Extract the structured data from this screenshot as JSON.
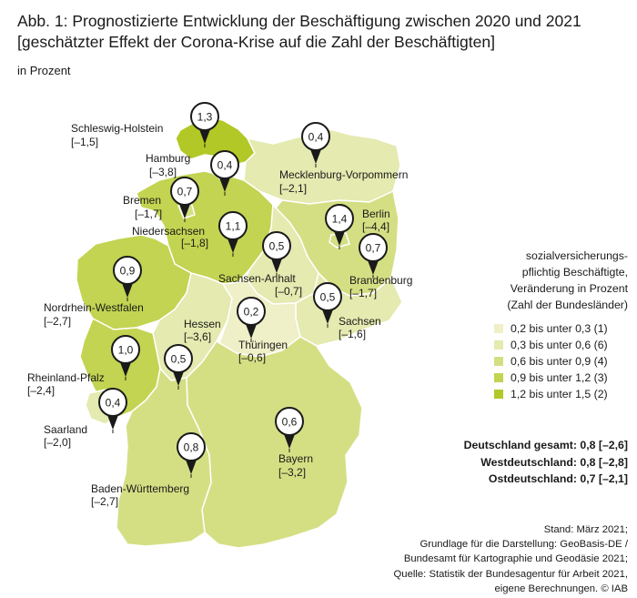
{
  "title": "Abb. 1: Prognostizierte Entwicklung der Beschäftigung zwischen 2020 und 2021 [geschätzter Effekt der Corona-Krise auf die Zahl der Beschäftigten]",
  "subtitle": "in Prozent",
  "colors": {
    "class1": "#efefc8",
    "class2": "#e4eab0",
    "class3": "#d4df84",
    "class4": "#c2d451",
    "class5": "#b2c827",
    "border": "#ffffff"
  },
  "states": [
    {
      "name": "Schleswig-Holstein",
      "value": "1,3",
      "bracket": "[–1,5]"
    },
    {
      "name": "Hamburg",
      "value": "0,4",
      "bracket": "[–3,8]"
    },
    {
      "name": "Mecklenburg-Vorpommern",
      "value": "0,4",
      "bracket": "[–2,1]"
    },
    {
      "name": "Bremen",
      "value": "0,7",
      "bracket": "[–1,7]"
    },
    {
      "name": "Niedersachsen",
      "value": "1,1",
      "bracket": "[–1,8]"
    },
    {
      "name": "Berlin",
      "value": "1,4",
      "bracket": "[–4,4]"
    },
    {
      "name": "Brandenburg",
      "value": "0,7",
      "bracket": "[–1,7]"
    },
    {
      "name": "Sachsen-Anhalt",
      "value": "0,5",
      "bracket": "[–0,7]"
    },
    {
      "name": "Nordrhein-Westfalen",
      "value": "0,9",
      "bracket": "[–2,7]"
    },
    {
      "name": "Sachsen",
      "value": "0,5",
      "bracket": "[–1,6]"
    },
    {
      "name": "Hessen",
      "value": "0,5",
      "bracket": "[–3,6]"
    },
    {
      "name": "Thüringen",
      "value": "0,2",
      "bracket": "[–0,6]"
    },
    {
      "name": "Rheinland-Pfalz",
      "value": "1,0",
      "bracket": "[–2,4]"
    },
    {
      "name": "Saarland",
      "value": "0,4",
      "bracket": "[–2,0]"
    },
    {
      "name": "Bayern",
      "value": "0,6",
      "bracket": "[–3,2]"
    },
    {
      "name": "Baden-Württemberg",
      "value": "0,8",
      "bracket": "[–2,7]"
    }
  ],
  "legend": {
    "title_lines": [
      "sozialversicherungs-",
      "pflichtig Beschäftigte,",
      "Veränderung in Prozent",
      "(Zahl der Bundesländer)"
    ],
    "items": [
      {
        "label": "0,2 bis unter 0,3 (1)",
        "color": "#efefc8"
      },
      {
        "label": "0,3 bis unter 0,6 (6)",
        "color": "#e4eab0"
      },
      {
        "label": "0,6 bis unter 0,9 (4)",
        "color": "#d4df84"
      },
      {
        "label": "0,9 bis unter 1,2 (3)",
        "color": "#c2d451"
      },
      {
        "label": "1,2 bis unter 1,5 (2)",
        "color": "#b2c827"
      }
    ]
  },
  "totals": [
    "Deutschland gesamt: 0,8 [–2,6]",
    "Westdeutschland: 0,8 [–2,8]",
    "Ostdeutschland: 0,7 [–2,1]"
  ],
  "source_lines": [
    "Stand: März 2021;",
    "Grundlage für die Darstellung: GeoBasis-DE /",
    "Bundesamt für Kartographie und Geodäsie 2021;",
    "Quelle: Statistik der Bundesagentur für Arbeit 2021,",
    "eigene Berechnungen. © IAB"
  ]
}
